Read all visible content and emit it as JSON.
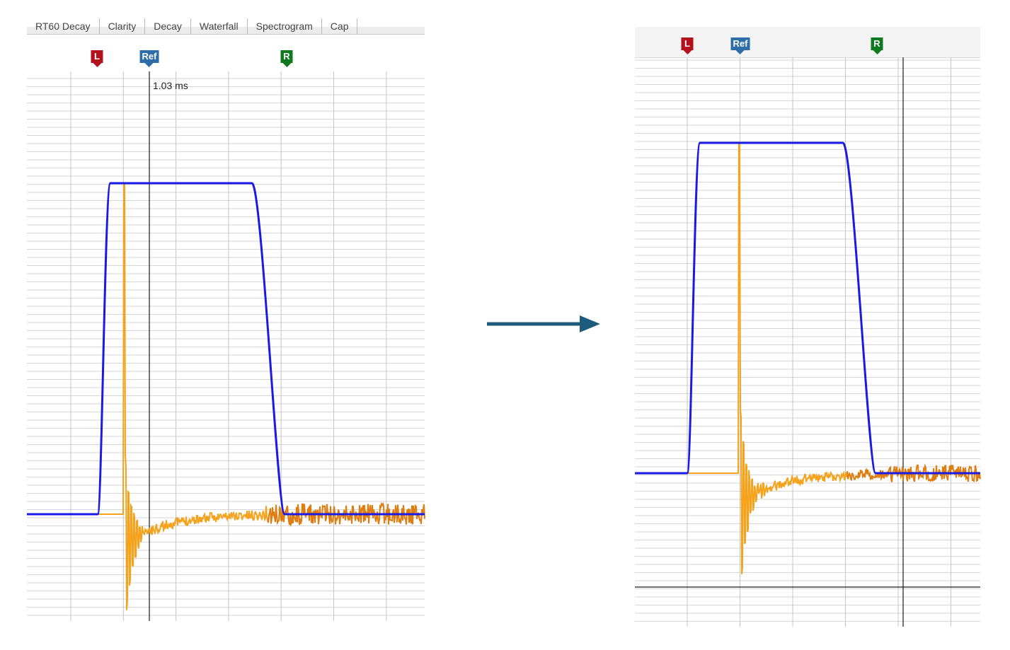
{
  "left_panel": {
    "tabs": [
      "RT60 Decay",
      "Clarity",
      "Decay",
      "Waterfall",
      "Spectrogram",
      "Cap"
    ],
    "markers": {
      "left": "L",
      "ref": "Ref",
      "right": "R"
    },
    "cursor_readout": "1.03 ms"
  },
  "right_panel": {
    "markers": {
      "left": "L",
      "ref": "Ref",
      "right": "R"
    }
  },
  "colors": {
    "step_trace": "#1a1ae6",
    "impulse_trace": "#f5a21c",
    "impulse_trace_tail": "#e07d10",
    "grid": "#d6d6d6",
    "cursor": "#1a1a1a",
    "arrow": "#1d5c7a"
  },
  "icons": {
    "arrow": "right-arrow-icon"
  }
}
